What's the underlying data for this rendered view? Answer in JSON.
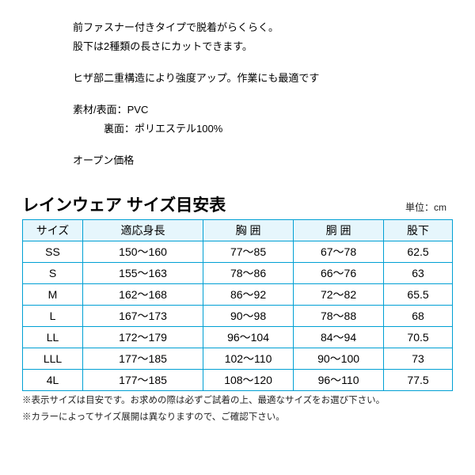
{
  "description": {
    "line1": "前ファスナー付きタイプで脱着がらくらく。",
    "line2": "股下は2種類の長さにカットできます。",
    "line3": "ヒザ部二重構造により強度アップ。作業にも最適です",
    "mat1": "素材/表面：PVC",
    "mat2": "　　　裏面：ポリエステル100%",
    "price": "オープン価格"
  },
  "table": {
    "title": "レインウェア サイズ目安表",
    "unit": "単位：cm",
    "headers": [
      "サイズ",
      "適応身長",
      "胸 囲",
      "胴 囲",
      "股下"
    ],
    "rows": [
      [
        "SS",
        "150～160",
        "77～85",
        "67～78",
        "62.5"
      ],
      [
        "S",
        "155～163",
        "78～86",
        "66～76",
        "63"
      ],
      [
        "M",
        "162～168",
        "86～92",
        "72～82",
        "65.5"
      ],
      [
        "L",
        "167～173",
        "90～98",
        "78～88",
        "68"
      ],
      [
        "LL",
        "172～179",
        "96～104",
        "84～94",
        "70.5"
      ],
      [
        "LLL",
        "177～185",
        "102～110",
        "90～100",
        "73"
      ],
      [
        "4L",
        "177～185",
        "108～120",
        "96～110",
        "77.5"
      ]
    ]
  },
  "notes": {
    "n1": "※表示サイズは目安です。お求めの際は必ずご試着の上、最適なサイズをお選び下さい。",
    "n2": "※カラーによってサイズ展開は異なりますので、ご確認下さい。"
  },
  "style": {
    "border_color": "#00a0d4",
    "header_bg": "#e6f6fc",
    "text_color": "#000"
  }
}
